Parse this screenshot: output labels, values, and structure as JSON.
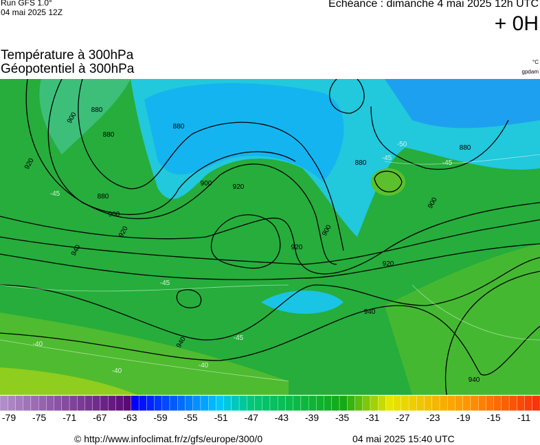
{
  "header": {
    "run": "Run GFS 1.0°",
    "run_date": "04 mai 2025 12Z",
    "forecast": "Echéance : dimanche 4 mai 2025 12h UTC",
    "lead": "+ 0H"
  },
  "titles": {
    "temperature": "Température à 300hPa",
    "geopotential": "Géopotentiel à 300hPa",
    "temp_unit": "°C",
    "geo_unit": "gpdam"
  },
  "map": {
    "geopotential_labels": [
      900,
      880,
      880,
      920,
      880,
      900,
      920,
      900,
      920,
      940,
      880,
      880,
      900,
      920,
      940,
      940,
      940,
      920,
      900,
      880
    ],
    "temperature_labels": [
      -45,
      -50,
      -45,
      -45,
      -40,
      -40,
      -40,
      -45,
      -45
    ]
  },
  "legend": {
    "labels": [
      -79,
      -75,
      -71,
      -67,
      -63,
      -59,
      -55,
      -51,
      -47,
      -43,
      -39,
      -35,
      -31,
      -27,
      -23,
      -19,
      -15,
      -11
    ]
  },
  "footer": {
    "url": "© http://www.infoclimat.fr/z/gfs/europe/300/0",
    "generated": "04 mai 2025 15:40 UTC"
  }
}
